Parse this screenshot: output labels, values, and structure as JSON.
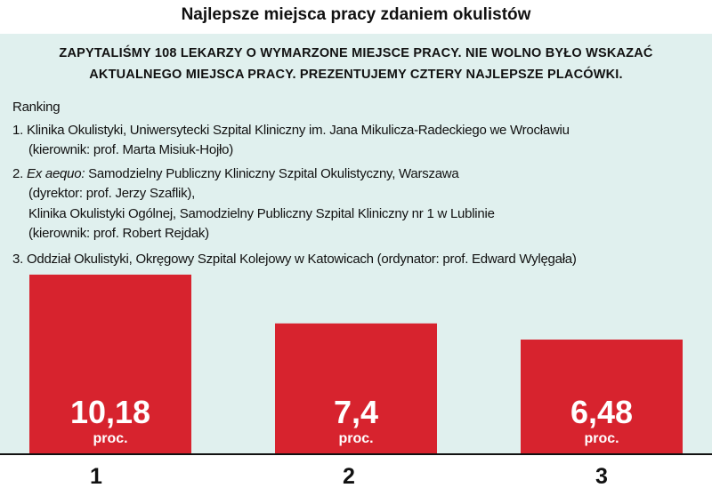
{
  "chart_data": {
    "type": "bar",
    "title": "Najlepsze miejsca pracy zdaniem okulistów",
    "subtitle": [
      "ZAPYTALIŚMY 108 LEKARZY O WYMARZONE MIEJSCE PRACY. NIE WOLNO BYŁO WSKAZAĆ",
      "AKTUALNEGO MIEJSCA PRACY. PREZENTUJEMY CZTERY NAJLEPSZE PLACÓWKI."
    ],
    "ranking": {
      "heading": "Ranking",
      "items": [
        {
          "number": "1.",
          "lines": [
            "Klinika Okulistyki, Uniwersytecki Szpital Kliniczny im. Jana Mikulicza-Radeckiego we Wrocławiu",
            "(kierownik: prof. Marta Misiuk-Hojło)"
          ]
        },
        {
          "number": "2.",
          "prefix": "Ex aequo:",
          "lines": [
            "Samodzielny Publiczny Kliniczny Szpital  Okulistyczny, Warszawa",
            "(dyrektor: prof. Jerzy Szaflik),",
            "Klinika Okulistyki Ogólnej, Samodzielny  Publiczny Szpital Kliniczny nr 1 w Lublinie",
            "(kierownik: prof. Robert Rejdak)"
          ]
        },
        {
          "number": "3.",
          "lines": [
            "Oddział Okulistyki, Okręgowy Szpital Kolejowy w Katowicach (ordynator: prof. Edward Wylęgała)"
          ]
        }
      ]
    },
    "categories": [
      "1",
      "2",
      "3"
    ],
    "values": [
      10.18,
      7.4,
      6.48
    ],
    "value_labels": [
      "10,18",
      "7,4",
      "6,48"
    ],
    "unit": "proc.",
    "color": "#d7232e"
  }
}
